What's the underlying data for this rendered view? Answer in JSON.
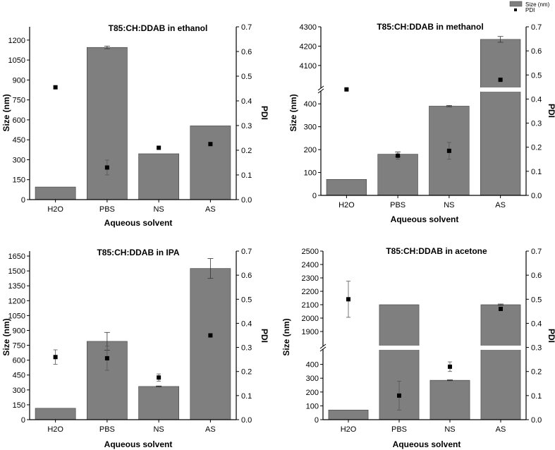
{
  "legend": {
    "bar_label": "Size (nm)",
    "point_label": "PDI"
  },
  "colors": {
    "bar": "#7f7f7f",
    "bar_edge": "#404040",
    "point": "#000000",
    "axis": "#000000",
    "gap": "#ffffff"
  },
  "chart_data": [
    {
      "type": "bar",
      "title": "T85:CH:DDAB in ethanol",
      "xlabel": "Aqueous solvent",
      "ylabel": "Size (nm)",
      "y2label": "PDI",
      "categories": [
        "H2O",
        "PBS",
        "NS",
        "AS"
      ],
      "series": [
        {
          "name": "Size (nm)",
          "values": [
            95,
            1145,
            345,
            555
          ],
          "errors": [
            0,
            10,
            0,
            0
          ]
        },
        {
          "name": "PDI",
          "values": [
            0.455,
            0.13,
            0.21,
            0.225
          ],
          "errors": [
            0.005,
            0.03,
            0.005,
            0.005
          ]
        }
      ],
      "ylim": [
        0,
        1300
      ],
      "yticks": [
        0,
        150,
        300,
        450,
        600,
        750,
        900,
        1050,
        1200
      ],
      "y2lim": [
        0,
        0.7
      ],
      "y2ticks": [
        0.0,
        0.1,
        0.2,
        0.3,
        0.4,
        0.5,
        0.6,
        0.7
      ]
    },
    {
      "type": "bar",
      "title": "T85:CH:DDAB in methanol",
      "xlabel": "Aqueous solvent",
      "ylabel": "Size (nm)",
      "y2label": "PDI",
      "categories": [
        "H2O",
        "PBS",
        "NS",
        "AS"
      ],
      "series": [
        {
          "name": "Size (nm)",
          "values": [
            70,
            180,
            390,
            4235
          ],
          "errors": [
            0,
            10,
            3,
            15
          ]
        },
        {
          "name": "PDI",
          "values": [
            0.44,
            0.165,
            0.185,
            0.48
          ],
          "errors": [
            0.003,
            0.015,
            0.035,
            0.003
          ]
        }
      ],
      "ybreak": {
        "lower": [
          0,
          450
        ],
        "upper": [
          3990,
          4300
        ]
      },
      "yticks_lower": [
        0,
        100,
        200,
        300,
        400
      ],
      "yticks_upper": [
        4100,
        4200,
        4300
      ],
      "y2lim": [
        0,
        0.7
      ],
      "y2ticks": [
        0.0,
        0.1,
        0.2,
        0.3,
        0.4,
        0.5,
        0.6,
        0.7
      ],
      "legend_position": "top-right"
    },
    {
      "type": "bar",
      "title": "T85:CH:DDAB in IPA",
      "xlabel": "Aqueous solvent",
      "ylabel": "Size (nm)",
      "y2label": "PDI",
      "categories": [
        "H2O",
        "PBS",
        "NS",
        "AS"
      ],
      "series": [
        {
          "name": "Size (nm)",
          "values": [
            115,
            790,
            335,
            1525
          ],
          "errors": [
            0,
            90,
            5,
            100
          ]
        },
        {
          "name": "PDI",
          "values": [
            0.26,
            0.255,
            0.175,
            0.35
          ],
          "errors": [
            0.03,
            0.05,
            0.015,
            0.005
          ]
        }
      ],
      "ylim": [
        0,
        1700
      ],
      "yticks": [
        0,
        150,
        300,
        450,
        600,
        750,
        900,
        1050,
        1200,
        1350,
        1500,
        1650
      ],
      "y2lim": [
        0,
        0.7
      ],
      "y2ticks": [
        0.0,
        0.1,
        0.2,
        0.3,
        0.4,
        0.5,
        0.6,
        0.7
      ]
    },
    {
      "type": "bar",
      "title": "T85:CH:DDAB in acetone",
      "xlabel": "Aqueous solvent",
      "ylabel": "Size (nm)",
      "y2label": "PDI",
      "categories": [
        "H2O",
        "PBS",
        "NS",
        "AS"
      ],
      "series": [
        {
          "name": "Size (nm)",
          "values": [
            70,
            2100,
            285,
            2100
          ],
          "errors": [
            0,
            0,
            3,
            5
          ]
        },
        {
          "name": "PDI",
          "values": [
            0.5,
            0.1,
            0.22,
            0.46
          ],
          "errors": [
            0.075,
            0.06,
            0.02,
            0.005
          ]
        }
      ],
      "ybreak": {
        "lower": [
          0,
          500
        ],
        "upper": [
          1800,
          2500
        ]
      },
      "yticks_lower": [
        0,
        100,
        200,
        300,
        400
      ],
      "yticks_upper": [
        1900,
        2000,
        2100,
        2200,
        2300,
        2400,
        2500
      ],
      "y2lim": [
        0,
        0.7
      ],
      "y2ticks": [
        0.0,
        0.1,
        0.2,
        0.3,
        0.4,
        0.5,
        0.6,
        0.7
      ]
    }
  ]
}
